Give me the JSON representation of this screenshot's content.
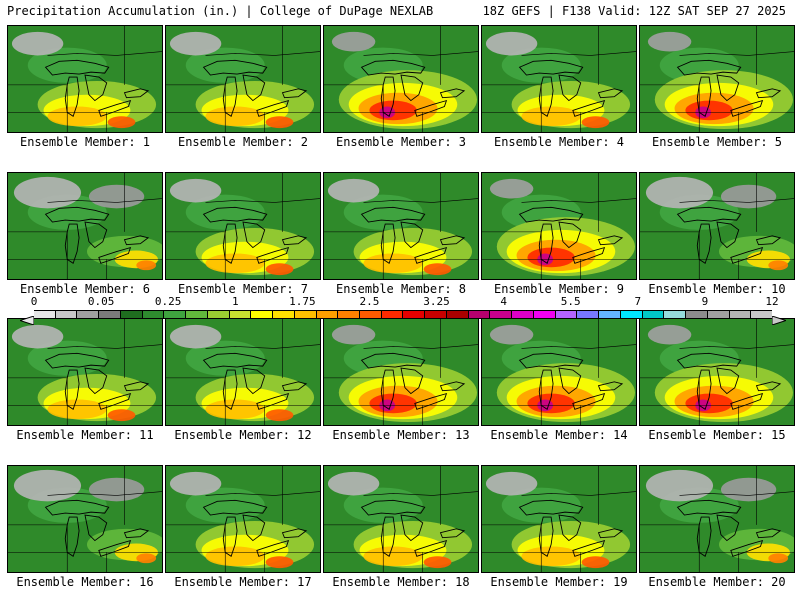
{
  "header": {
    "title": "Precipitation Accumulation (in.) | College of DuPage NEXLAB",
    "run_info": "18Z GEFS | F138 Valid: 12Z SAT SEP 27 2025"
  },
  "panels": [
    {
      "label": "Ensemble Member: 1",
      "intensity": "moderate"
    },
    {
      "label": "Ensemble Member: 2",
      "intensity": "moderate"
    },
    {
      "label": "Ensemble Member: 3",
      "intensity": "heavy"
    },
    {
      "label": "Ensemble Member: 4",
      "intensity": "moderate"
    },
    {
      "label": "Ensemble Member: 5",
      "intensity": "heavy"
    },
    {
      "label": "Ensemble Member: 6",
      "intensity": "light"
    },
    {
      "label": "Ensemble Member: 7",
      "intensity": "moderate"
    },
    {
      "label": "Ensemble Member: 8",
      "intensity": "moderate"
    },
    {
      "label": "Ensemble Member: 9",
      "intensity": "heavy"
    },
    {
      "label": "Ensemble Member: 10",
      "intensity": "light"
    },
    {
      "label": "Ensemble Member: 11",
      "intensity": "moderate"
    },
    {
      "label": "Ensemble Member: 12",
      "intensity": "moderate"
    },
    {
      "label": "Ensemble Member: 13",
      "intensity": "heavy"
    },
    {
      "label": "Ensemble Member: 14",
      "intensity": "heavy"
    },
    {
      "label": "Ensemble Member: 15",
      "intensity": "heavy"
    },
    {
      "label": "Ensemble Member: 16",
      "intensity": "light"
    },
    {
      "label": "Ensemble Member: 17",
      "intensity": "moderate"
    },
    {
      "label": "Ensemble Member: 18",
      "intensity": "moderate"
    },
    {
      "label": "Ensemble Member: 19",
      "intensity": "moderate"
    },
    {
      "label": "Ensemble Member: 20",
      "intensity": "light"
    }
  ],
  "legend": {
    "labels": [
      "0",
      "0.05",
      "0.25",
      "1",
      "1.75",
      "2.5",
      "3.25",
      "4",
      "5.5",
      "7",
      "9",
      "12"
    ],
    "colors": [
      "#e6e6e6",
      "#c8c8c8",
      "#a0a0a0",
      "#7a7a7a",
      "#1f6e1f",
      "#2e8b2e",
      "#3fa33f",
      "#62b83c",
      "#9acd32",
      "#c8e030",
      "#ffff00",
      "#ffe000",
      "#ffc000",
      "#ffa000",
      "#ff8000",
      "#ff5a00",
      "#ff2a00",
      "#e60000",
      "#c80000",
      "#aa0000",
      "#b4006e",
      "#c8008c",
      "#dc00c8",
      "#f000f0",
      "#b464ff",
      "#7878ff",
      "#64b4ff",
      "#00e6ff",
      "#00c8c8",
      "#96dcdc",
      "#8c8c8c",
      "#a0a0a0",
      "#b4b4b4",
      "#c8c8c8"
    ]
  }
}
